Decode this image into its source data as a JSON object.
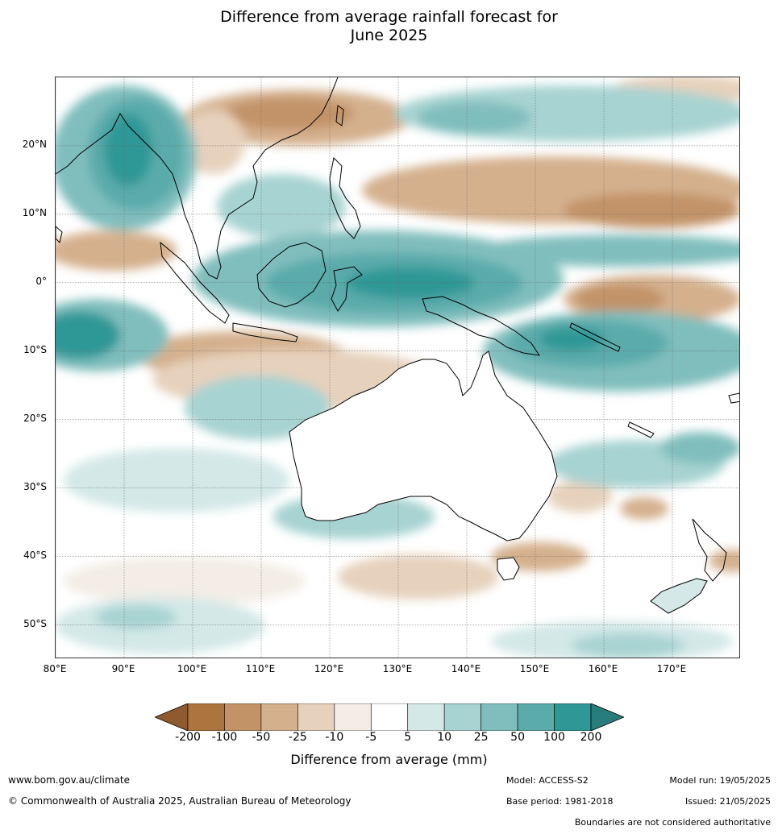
{
  "title": {
    "line1": "Difference from average rainfall forecast for",
    "line2": "June 2025"
  },
  "map": {
    "lat_labels": [
      "20°N",
      "10°N",
      "0°",
      "10°S",
      "20°S",
      "30°S",
      "40°S",
      "50°S"
    ],
    "lat_values": [
      20,
      10,
      0,
      -10,
      -20,
      -30,
      -40,
      -50
    ],
    "lon_labels": [
      "80°E",
      "90°E",
      "100°E",
      "110°E",
      "120°E",
      "130°E",
      "140°E",
      "150°E",
      "160°E",
      "170°E"
    ],
    "lon_values": [
      80,
      90,
      100,
      110,
      120,
      130,
      140,
      150,
      160,
      170
    ],
    "lon_range": [
      80,
      180
    ],
    "lat_range": [
      -55,
      30
    ],
    "grid": true,
    "palette": {
      "lt_-100": "#a97240",
      "-100_-50": "#c29367",
      "-50_-25": "#d4b08d",
      "-25_-10": "#e6d1bc",
      "-10_-5": "#f3ede6",
      "-5_5": "#ffffff",
      "5_10": "#d3e8e7",
      "10_25": "#a7d3d2",
      "25_50": "#80bebd",
      "50_100": "#5aabaa",
      "gt_100": "#2f9896"
    }
  },
  "colorbar": {
    "ticks": [
      "-200",
      "-100",
      "-50",
      "-25",
      "-10",
      "-5",
      "5",
      "10",
      "25",
      "50",
      "100",
      "200"
    ],
    "colors": [
      "#8f5a2e",
      "#ae7440",
      "#c29367",
      "#d4b08d",
      "#e6d1bc",
      "#f3ede6",
      "#ffffff",
      "#d3e8e7",
      "#a7d3d2",
      "#80bebd",
      "#5aabaa",
      "#2f9896",
      "#267d7b"
    ],
    "label": "Difference from average (mm)"
  },
  "footer": {
    "website": "www.bom.gov.au/climate",
    "copyright": "© Commonwealth of Australia 2025, Australian Bureau of Meteorology",
    "model": "Model: ACCESS-S2",
    "base_period": "Base period: 1981-2018",
    "model_run": "Model run: 19/05/2025",
    "issued": "Issued: 21/05/2025",
    "disclaimer": "Boundaries are not considered authoritative"
  }
}
